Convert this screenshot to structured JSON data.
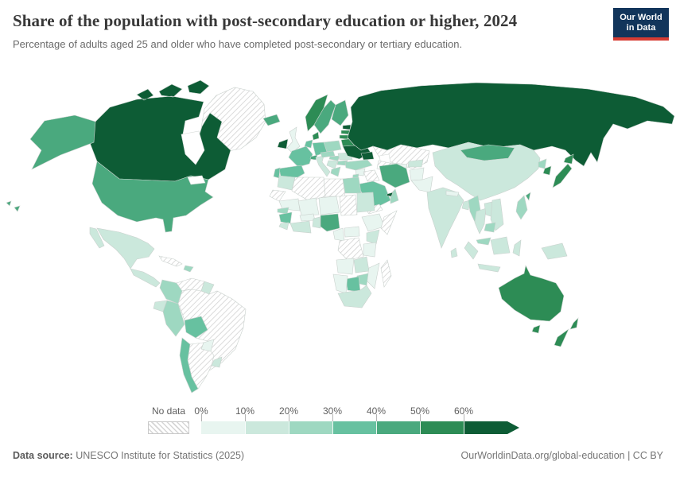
{
  "header": {
    "title": "Share of the population with post-secondary education or higher, 2024",
    "subtitle": "Percentage of adults aged 25 and older who have completed post-secondary or tertiary education.",
    "logo": {
      "line1": "Our World",
      "line2": "in Data"
    }
  },
  "legend": {
    "no_data_label": "No data",
    "ticks": [
      "0%",
      "10%",
      "20%",
      "30%",
      "40%",
      "50%",
      "60%"
    ]
  },
  "footer": {
    "source_label": "Data source:",
    "source_value": "UNESCO Institute for Statistics (2025)",
    "credit": "OurWorldinData.org/global-education | CC BY"
  },
  "colors": {
    "brand_navy": "#12355b",
    "brand_red": "#d73c33",
    "title_text": "#383838",
    "muted_text": "#757575"
  },
  "map": {
    "palette": {
      "c0": "#e8f5f0",
      "c1": "#cbe8dc",
      "c2": "#9ed8c1",
      "c3": "#67c1a0",
      "c4": "#4aa97e",
      "c5": "#2d8c55",
      "c6": "#0d5c35"
    },
    "bucket_order": [
      "c0",
      "c1",
      "c2",
      "c3",
      "c4",
      "c5",
      "c6"
    ],
    "no_data_key": "nd"
  },
  "chart_data": {
    "type": "heatmap",
    "subtype": "world-choropleth",
    "title": "Share of the population with post-secondary education or higher, 2024",
    "year": 2024,
    "unit": "% of adults aged 25+",
    "legend_bins": [
      "0%",
      "10%",
      "20%",
      "30%",
      "40%",
      "50%",
      "60%"
    ],
    "bucket_ranges": {
      "c0": "0-10%",
      "c1": "10-20%",
      "c2": "20-30%",
      "c3": "30-40%",
      "c4": "40-50%",
      "c5": "50-60%",
      "c6": "60%+",
      "nd": "No data"
    },
    "regions": {
      "greenland": "nd",
      "canada": "c6",
      "united-states": "c4",
      "hawaii": "c4",
      "mexico": "c1",
      "central-america": "c1",
      "cuba": "nd",
      "hispaniola": "c2",
      "colombia": "c2",
      "venezuela": "nd",
      "guyana": "c1",
      "ecuador": "c1",
      "peru": "c2",
      "bolivia": "c3",
      "brazil": "nd",
      "paraguay": "c0",
      "uruguay": "c1",
      "argentina": "nd",
      "chile": "c3",
      "iceland": "c4",
      "ireland": "c6",
      "united-kingdom": "c0",
      "norway": "c5",
      "sweden": "c4",
      "finland": "c4",
      "denmark": "c5",
      "estonia": "c6",
      "latvia": "c5",
      "lithuania": "c5",
      "belarus": "c5",
      "poland": "c2",
      "germany": "c3",
      "netherlands-belgium": "c3",
      "france": "c3",
      "switzerland": "c4",
      "spain": "c3",
      "portugal": "c3",
      "italy": "c1",
      "austria-czechia": "c2",
      "hungary": "c2",
      "balkans": "c1",
      "greece": "c2",
      "bulgaria": "c2",
      "romania": "c1",
      "ukraine": "c6",
      "russia": "c6",
      "caucasus": "c6",
      "kazakhstan": "nd",
      "uzbekistan": "c0",
      "turkmenistan": "nd",
      "kyrgyzstan": "c1",
      "turkey": "c2",
      "syria": "c0",
      "iraq": "nd",
      "israel-jordan": "c2",
      "iran": "c4",
      "afghanistan": "c0",
      "pakistan": "c0",
      "saudi-arabia": "c3",
      "yemen": "nd",
      "oman": "c2",
      "united-arab-emirates": "c6",
      "egypt": "c2",
      "libya": "nd",
      "algeria": "nd",
      "morocco": "c1",
      "western-sahara": "nd",
      "mauritania": "c0",
      "mali": "c0",
      "niger": "c0",
      "chad": "nd",
      "sudan": "c1",
      "senegal": "c2",
      "guinea": "c3",
      "sierra-leone-liberia": "c1",
      "ivory-coast-ghana": "c1",
      "burkina-faso": "c0",
      "benin-togo": "c1",
      "nigeria": "c4",
      "cameroon": "c0",
      "central-african-republic": "c0",
      "ethiopia": "c0",
      "somalia": "nd",
      "kenya": "c1",
      "drc": "nd",
      "tanzania": "c0",
      "angola": "c0",
      "zambia": "c1",
      "mozambique": "c0",
      "zimbabwe": "c2",
      "botswana": "c3",
      "namibia": "c0",
      "south-africa": "c1",
      "madagascar": "nd",
      "india": "c1",
      "nepal": "c0",
      "bangladesh": "c1",
      "sri-lanka": "c1",
      "china": "c1",
      "mongolia": "c4",
      "north-korea": "c2",
      "south-korea": "c5",
      "japan": "c5",
      "taiwan": "c4",
      "myanmar": "c2",
      "thailand": "c1",
      "laos": "c1",
      "vietnam": "c1",
      "cambodia": "c2",
      "malaysia": "c2",
      "philippines": "c2",
      "indonesia": "c1",
      "papua-new-guinea": "c1",
      "australia": "c5",
      "new-zealand": "c5"
    }
  }
}
